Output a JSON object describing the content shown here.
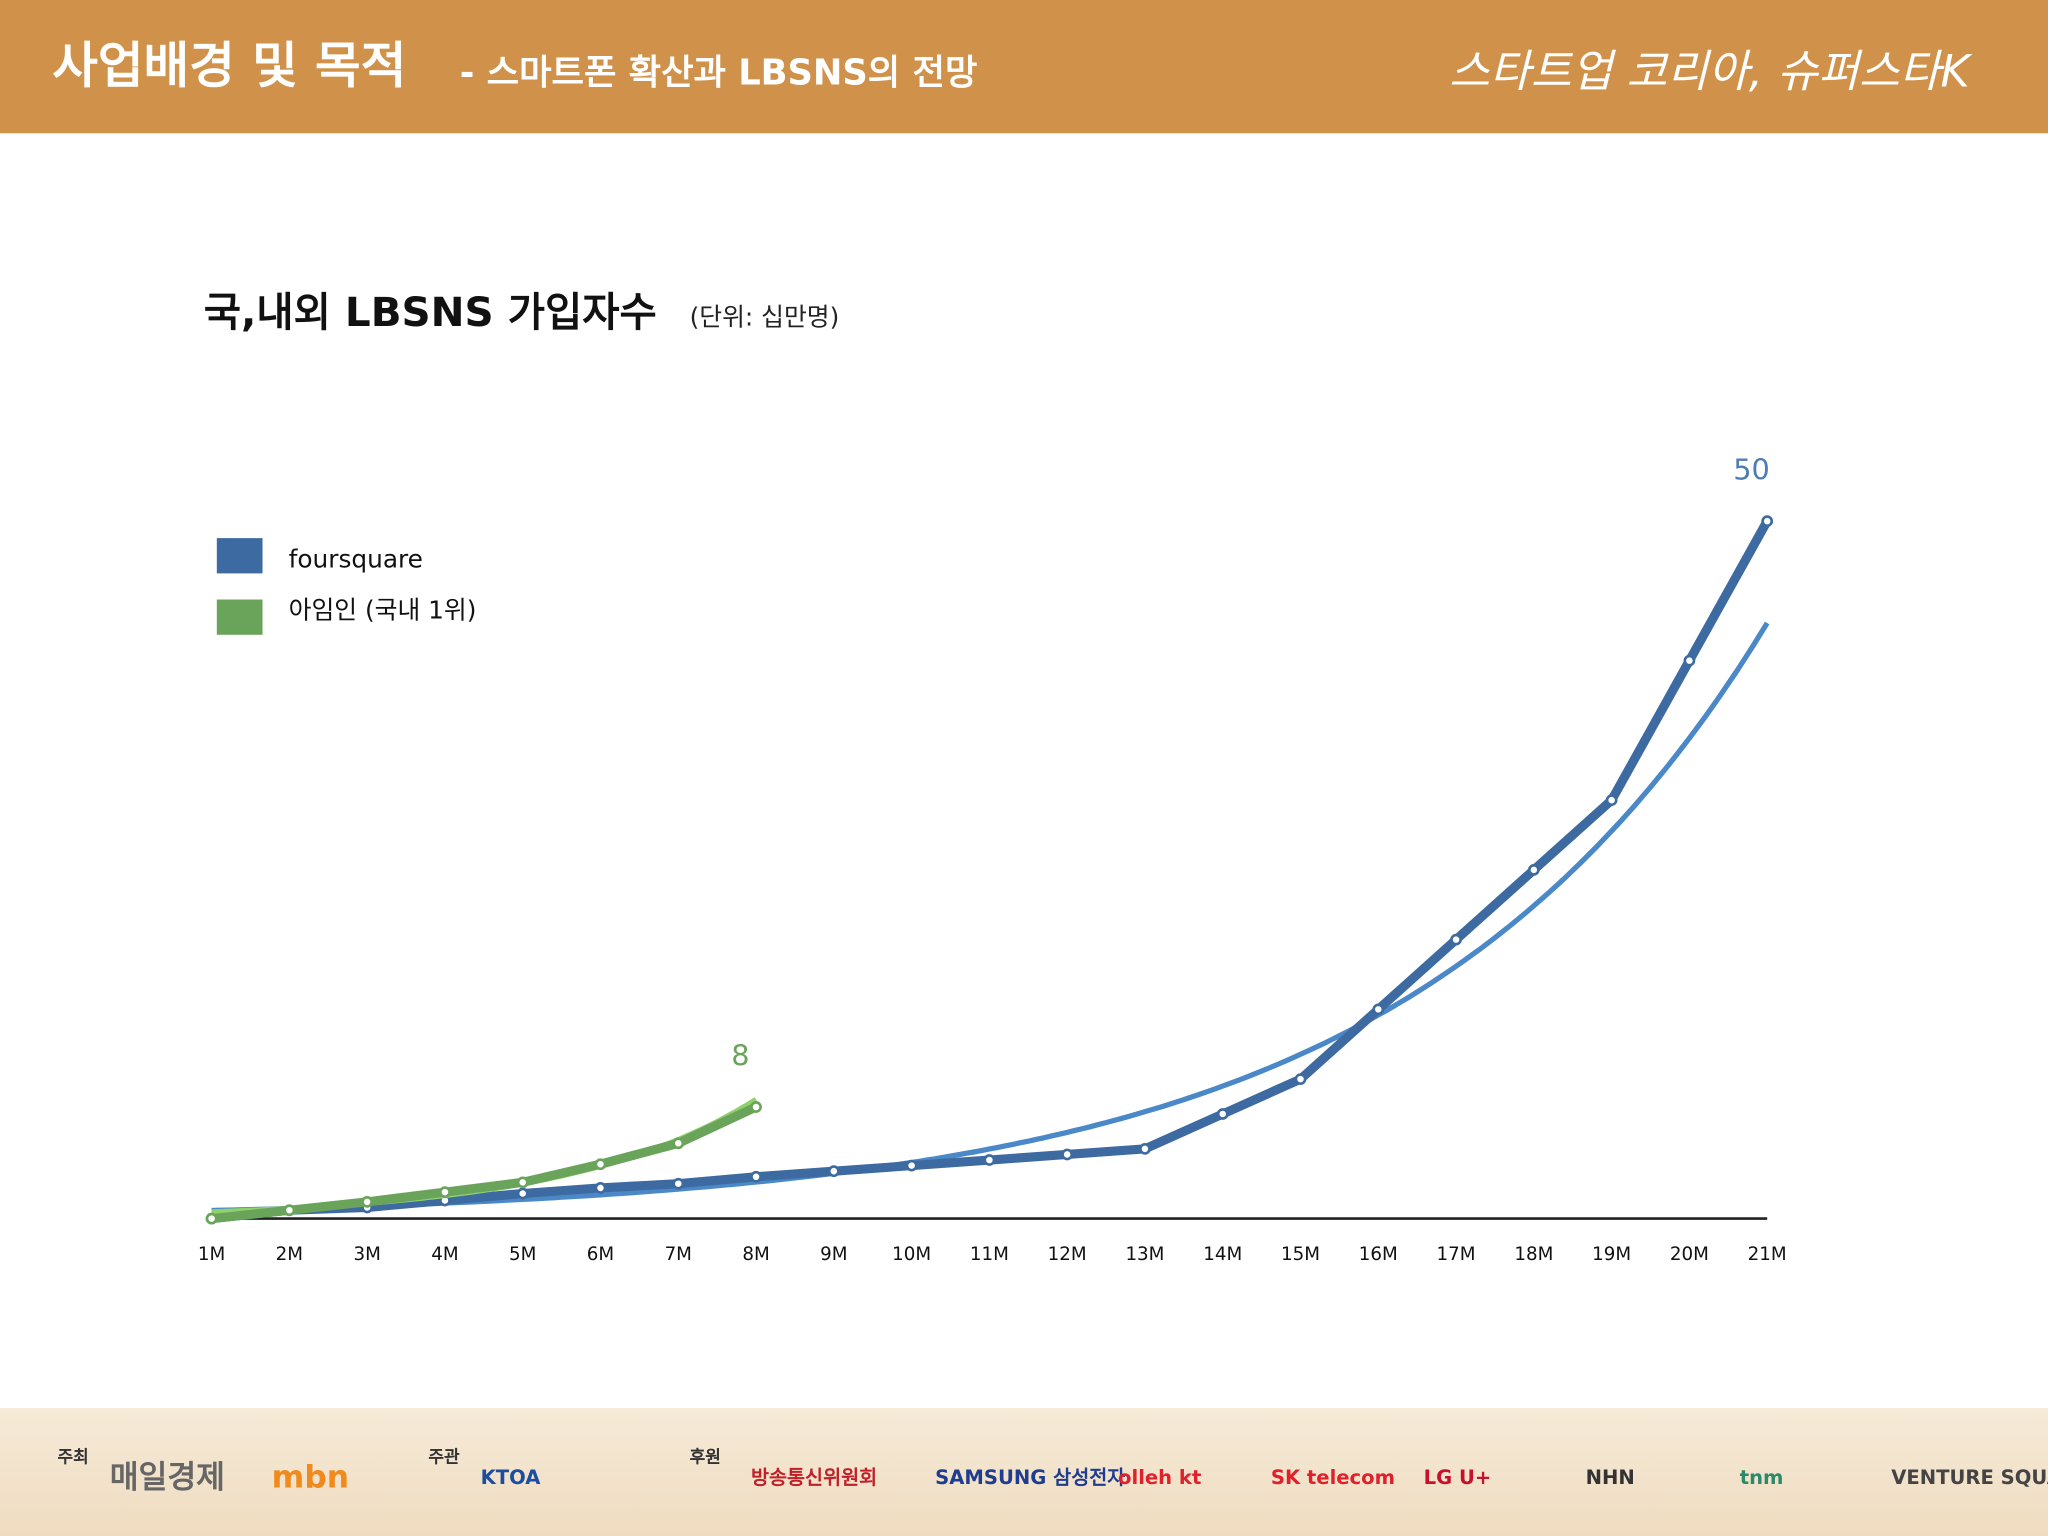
{
  "header": {
    "title": "사업배경 및 목적",
    "subtitle": "- 스마트폰 확산과 LBSNS의 전망",
    "brand": "스타트업 코리아, 슈퍼스타K"
  },
  "chart_data": {
    "type": "line",
    "title": "국,내외 LBSNS 가입자수",
    "subtitle": "(단위: 십만명)",
    "categories": [
      "1M",
      "2M",
      "3M",
      "4M",
      "5M",
      "6M",
      "7M",
      "8M",
      "9M",
      "10M",
      "11M",
      "12M",
      "13M",
      "14M",
      "15M",
      "16M",
      "17M",
      "18M",
      "19M",
      "20M",
      "21M"
    ],
    "series": [
      {
        "name": "foursquare",
        "color": "#3d6aa0",
        "trend_color": "#4a88c8",
        "label_color": "#4d7db3",
        "values": [
          0,
          0.6,
          0.8,
          1.3,
          1.8,
          2.2,
          2.5,
          3.0,
          3.4,
          3.8,
          4.2,
          4.6,
          5.0,
          7.5,
          10,
          15,
          20,
          25,
          30,
          40,
          50
        ]
      },
      {
        "name": "아임인 (국내 1위)",
        "color": "#6aa35a",
        "trend_color": "#8fd16a",
        "label_color": "#6aa35a",
        "values": [
          0,
          0.6,
          1.2,
          1.9,
          2.6,
          3.9,
          5.4,
          8,
          null,
          null,
          null,
          null,
          null,
          null,
          null,
          null,
          null,
          null,
          null,
          null,
          null
        ]
      }
    ],
    "ylim": [
      0,
      50
    ],
    "trendline": true,
    "label_last": true,
    "legend": "left"
  },
  "footer": [
    {
      "role": "주최",
      "names": [
        "매일경제",
        "mbn"
      ]
    },
    {
      "role": "주관",
      "names": [
        "KTOA"
      ]
    },
    {
      "role": "후원",
      "names": [
        "방송통신위원회",
        "SAMSUNG 삼성전자",
        "olleh kt",
        "SK telecom",
        "LG U+",
        "NHN",
        "tnm",
        "VENTURE SQUARE"
      ]
    }
  ]
}
